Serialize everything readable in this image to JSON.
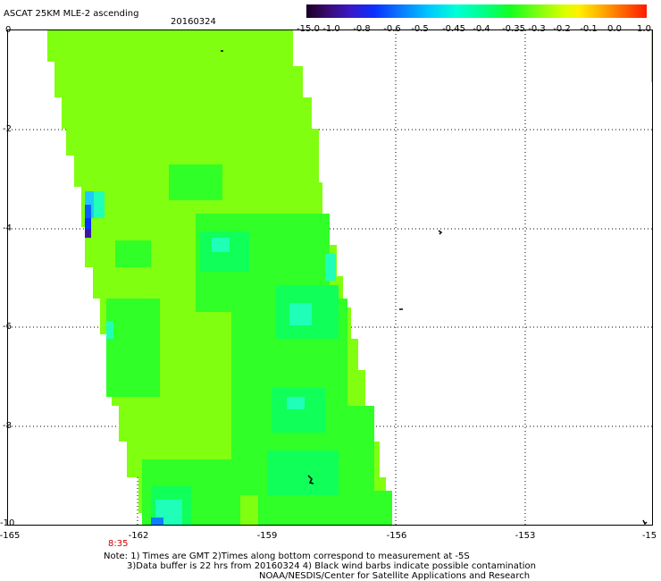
{
  "title": "ASCAT 25KM MLE-2 ascending",
  "date": "20160324",
  "colorbar": {
    "labels": [
      "-15.0",
      "-1.0",
      "-0.8",
      "-0.6",
      "-0.5",
      "-0.45",
      "-0.4",
      "-0.35",
      "-0.3",
      "-0.2",
      "-0.1",
      "0.0",
      "1.0"
    ]
  },
  "axes": {
    "y_labels": [
      "0",
      "-2",
      "-4",
      "-6",
      "-8",
      "-10"
    ],
    "x_labels": [
      "-165",
      "-162",
      "-159",
      "-156",
      "-153",
      "-15"
    ]
  },
  "time_label": "8:35",
  "notes": [
    "Note: 1) Times are GMT 2)Times along bottom correspond to measurement at -5S",
    "3)Data buffer is 22 hrs from 20160324 4) Black wind barbs indicate possible contamination",
    "NOAA/NESDIS/Center for Satellite Applications and Research"
  ],
  "colors": {
    "swath_main": "#80ff10",
    "swath_low": "#14ff40",
    "swath_cyan": "#20ffc8",
    "swath_blue": "#0a40ff",
    "swath_purple": "#3a19a0"
  }
}
